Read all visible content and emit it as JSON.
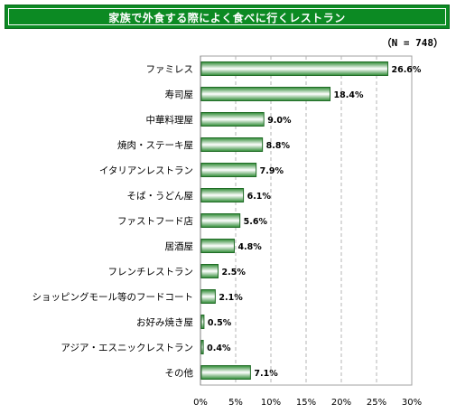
{
  "title": "家族で外食する際によく食べに行くレストラン",
  "sample_size": "（N = 748）",
  "colors": {
    "title_bg": "#0c8a23",
    "bar_dark": "#2d8a33",
    "bar_light": "#ffffff",
    "grid": "#b4b4b4"
  },
  "chart_data": {
    "type": "bar",
    "orientation": "horizontal",
    "title": "家族で外食する際によく食べに行くレストラン",
    "categories": [
      "ファミレス",
      "寿司屋",
      "中華料理屋",
      "焼肉・ステーキ屋",
      "イタリアンレストラン",
      "そば・うどん屋",
      "ファストフード店",
      "居酒屋",
      "フレンチレストラン",
      "ショッピングモール等のフードコート",
      "お好み焼き屋",
      "アジア・エスニックレストラン",
      "その他"
    ],
    "values": [
      26.6,
      18.4,
      9.0,
      8.8,
      7.9,
      6.1,
      5.6,
      4.8,
      2.5,
      2.1,
      0.5,
      0.4,
      7.1
    ],
    "value_labels": [
      "26.6%",
      "18.4%",
      "9.0%",
      "8.8%",
      "7.9%",
      "6.1%",
      "5.6%",
      "4.8%",
      "2.5%",
      "2.1%",
      "0.5%",
      "0.4%",
      "7.1%"
    ],
    "xlim": [
      0,
      30
    ],
    "xticks": [
      0,
      5,
      10,
      15,
      20,
      25,
      30
    ],
    "xtick_labels": [
      "0%",
      "5%",
      "10%",
      "15%",
      "20%",
      "25%",
      "30%"
    ],
    "grid": true
  }
}
